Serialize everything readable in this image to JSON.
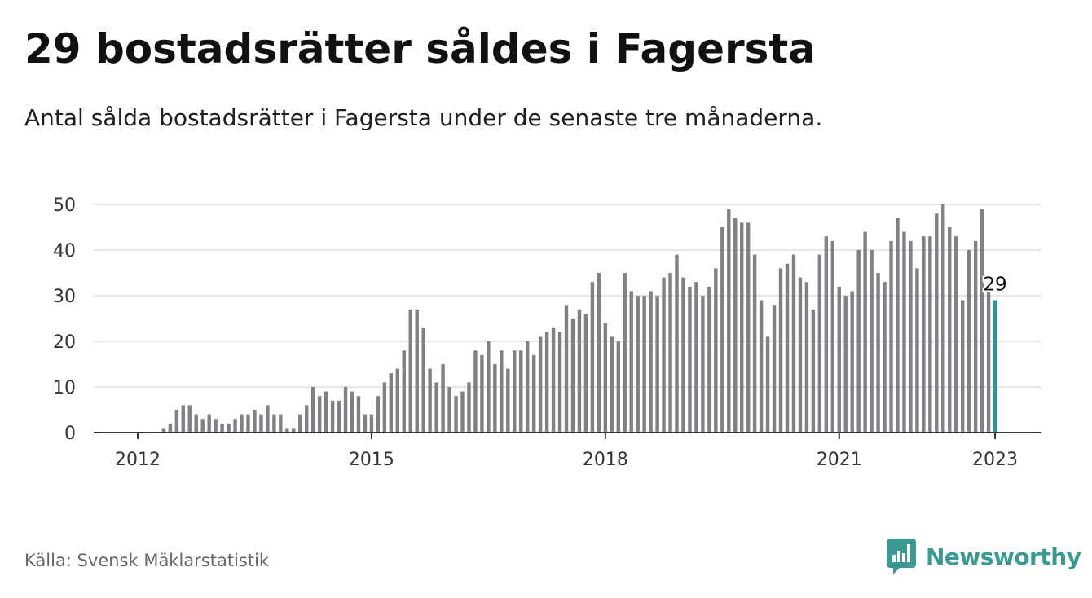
{
  "header": {
    "title": "29 bostadsrätter såldes i Fagersta",
    "subtitle": "Antal sålda bostadsrätter i Fagersta under de senaste tre månaderna."
  },
  "footer": {
    "source": "Källa: Svensk Mäklarstatistik",
    "brand": "Newsworthy"
  },
  "colors": {
    "bar": "#808085",
    "highlight": "#1d9e94",
    "grid": "#dddddd",
    "axis": "#333333",
    "brand": "#3a9a92"
  },
  "chart_data": {
    "type": "bar",
    "title": "29 bostadsrätter såldes i Fagersta",
    "x_start": "2012-01",
    "x_end": "2023-01",
    "xticks": [
      {
        "value": "2012-01",
        "label": "2012"
      },
      {
        "value": "2015-01",
        "label": "2015"
      },
      {
        "value": "2018-01",
        "label": "2018"
      },
      {
        "value": "2021-01",
        "label": "2021"
      },
      {
        "value": "2023-01",
        "label": "2023"
      }
    ],
    "yticks": [
      0,
      10,
      20,
      30,
      40,
      50
    ],
    "ylim": [
      0,
      50
    ],
    "grid": true,
    "values": [
      0,
      0,
      0,
      0,
      1,
      2,
      5,
      6,
      6,
      4,
      3,
      4,
      3,
      2,
      2,
      3,
      4,
      4,
      5,
      4,
      6,
      4,
      4,
      1,
      1,
      4,
      6,
      10,
      8,
      9,
      7,
      7,
      10,
      9,
      8,
      4,
      4,
      8,
      11,
      13,
      14,
      18,
      27,
      27,
      23,
      14,
      11,
      15,
      10,
      8,
      9,
      11,
      18,
      17,
      20,
      15,
      18,
      14,
      18,
      18,
      20,
      17,
      21,
      22,
      23,
      22,
      28,
      25,
      27,
      26,
      33,
      35,
      24,
      21,
      20,
      35,
      31,
      30,
      30,
      31,
      30,
      34,
      35,
      39,
      34,
      32,
      33,
      30,
      32,
      36,
      45,
      49,
      47,
      46,
      46,
      39,
      29,
      21,
      28,
      36,
      37,
      39,
      34,
      33,
      27,
      39,
      43,
      42,
      32,
      30,
      31,
      40,
      44,
      40,
      35,
      33,
      42,
      47,
      44,
      42,
      36,
      43,
      43,
      48,
      50,
      45,
      43,
      29,
      40,
      42,
      49,
      31,
      29
    ],
    "highlight_label": "29"
  }
}
